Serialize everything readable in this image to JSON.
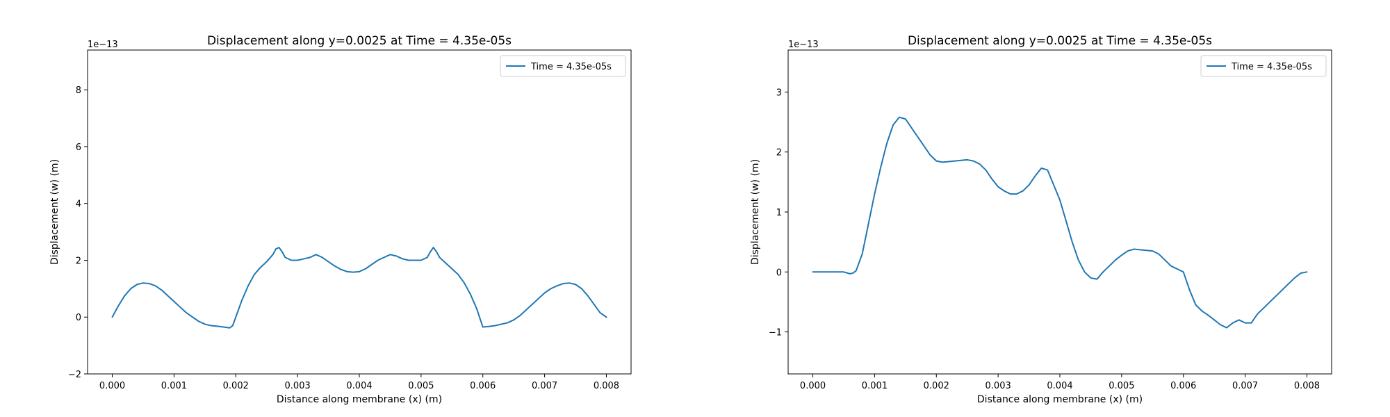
{
  "chart_data": [
    {
      "type": "line",
      "title": "Displacement along y=0.0025 at Time = 4.35e-05s",
      "xlabel": "Distance along membrane (x) (m)",
      "ylabel": "Displacement (w) (m)",
      "y_offset_label": "1e−13",
      "xlim": [
        -0.0004,
        0.0084
      ],
      "ylim": [
        -2,
        9.4
      ],
      "x_ticks": [
        "0.000",
        "0.001",
        "0.002",
        "0.003",
        "0.004",
        "0.005",
        "0.006",
        "0.007",
        "0.008"
      ],
      "y_ticks": [
        "−2",
        "0",
        "2",
        "4",
        "6",
        "8"
      ],
      "legend_position": "top-right",
      "grid": false,
      "series": [
        {
          "name": "Time = 4.35e-05s",
          "color": "#1f77b4",
          "x": [
            0.0,
            0.0001,
            0.0002,
            0.0003,
            0.0004,
            0.0005,
            0.0006,
            0.0007,
            0.0008,
            0.0009,
            0.001,
            0.0011,
            0.0012,
            0.0013,
            0.0014,
            0.0015,
            0.0016,
            0.0017,
            0.0018,
            0.0019,
            0.00195,
            0.002,
            0.0021,
            0.0022,
            0.0023,
            0.0024,
            0.0025,
            0.0026,
            0.00265,
            0.0027,
            0.00275,
            0.0028,
            0.0029,
            0.003,
            0.0031,
            0.0032,
            0.0033,
            0.0034,
            0.0035,
            0.0036,
            0.0037,
            0.0038,
            0.0039,
            0.004,
            0.0041,
            0.0042,
            0.0043,
            0.0044,
            0.0045,
            0.0046,
            0.0047,
            0.0048,
            0.0049,
            0.005,
            0.0051,
            0.00515,
            0.0052,
            0.00525,
            0.0053,
            0.0054,
            0.0055,
            0.0056,
            0.0057,
            0.0058,
            0.0059,
            0.006,
            0.0061,
            0.0062,
            0.0063,
            0.0064,
            0.0065,
            0.0066,
            0.0067,
            0.0068,
            0.0069,
            0.007,
            0.0071,
            0.0072,
            0.0073,
            0.0074,
            0.0075,
            0.0076,
            0.0077,
            0.0078,
            0.0079,
            0.008
          ],
          "y": [
            0.0,
            0.4,
            0.75,
            1.0,
            1.15,
            1.2,
            1.18,
            1.1,
            0.95,
            0.75,
            0.55,
            0.35,
            0.15,
            0.0,
            -0.15,
            -0.25,
            -0.3,
            -0.32,
            -0.35,
            -0.38,
            -0.3,
            0.0,
            0.6,
            1.1,
            1.5,
            1.75,
            1.95,
            2.2,
            2.4,
            2.45,
            2.3,
            2.1,
            2.0,
            2.0,
            2.05,
            2.1,
            2.2,
            2.1,
            1.95,
            1.8,
            1.68,
            1.6,
            1.58,
            1.6,
            1.7,
            1.85,
            2.0,
            2.1,
            2.2,
            2.15,
            2.05,
            2.0,
            2.0,
            2.0,
            2.1,
            2.3,
            2.45,
            2.3,
            2.1,
            1.9,
            1.7,
            1.5,
            1.2,
            0.8,
            0.3,
            -0.35,
            -0.33,
            -0.3,
            -0.25,
            -0.2,
            -0.1,
            0.05,
            0.25,
            0.45,
            0.65,
            0.85,
            1.0,
            1.1,
            1.18,
            1.2,
            1.15,
            1.0,
            0.75,
            0.45,
            0.15,
            0.0
          ]
        }
      ]
    },
    {
      "type": "line",
      "title": "Displacement along y=0.0025 at Time = 4.35e-05s",
      "xlabel": "Distance along membrane (x) (m)",
      "ylabel": "Displacement (w) (m)",
      "y_offset_label": "1e−13",
      "xlim": [
        -0.0004,
        0.0084
      ],
      "ylim": [
        -1.7,
        3.7
      ],
      "x_ticks": [
        "0.000",
        "0.001",
        "0.002",
        "0.003",
        "0.004",
        "0.005",
        "0.006",
        "0.007",
        "0.008"
      ],
      "y_ticks": [
        "−1",
        "0",
        "1",
        "2",
        "3"
      ],
      "legend_position": "top-right",
      "grid": false,
      "series": [
        {
          "name": "Time = 4.35e-05s",
          "color": "#1f77b4",
          "x": [
            0.0,
            0.0001,
            0.0002,
            0.0003,
            0.0004,
            0.0005,
            0.0006,
            0.00065,
            0.0007,
            0.0008,
            0.0009,
            0.001,
            0.0011,
            0.0012,
            0.0013,
            0.0014,
            0.0015,
            0.0016,
            0.0017,
            0.0018,
            0.0019,
            0.002,
            0.0021,
            0.0022,
            0.0023,
            0.0024,
            0.0025,
            0.0026,
            0.0027,
            0.0028,
            0.0029,
            0.003,
            0.0031,
            0.0032,
            0.0033,
            0.0034,
            0.0035,
            0.0036,
            0.0037,
            0.0038,
            0.0039,
            0.004,
            0.0041,
            0.0042,
            0.0043,
            0.0044,
            0.0045,
            0.0046,
            0.0047,
            0.0048,
            0.0049,
            0.005,
            0.0051,
            0.0052,
            0.0053,
            0.0054,
            0.0055,
            0.0056,
            0.0057,
            0.0058,
            0.0059,
            0.006,
            0.0061,
            0.0062,
            0.0063,
            0.0064,
            0.0065,
            0.0066,
            0.0067,
            0.0068,
            0.0069,
            0.007,
            0.0071,
            0.0072,
            0.0073,
            0.0074,
            0.0075,
            0.0076,
            0.0077,
            0.0078,
            0.0079,
            0.008
          ],
          "y": [
            0.0,
            0.0,
            0.0,
            0.0,
            0.0,
            0.0,
            -0.03,
            -0.02,
            0.02,
            0.3,
            0.8,
            1.3,
            1.75,
            2.15,
            2.45,
            2.58,
            2.55,
            2.4,
            2.25,
            2.1,
            1.95,
            1.85,
            1.83,
            1.84,
            1.85,
            1.86,
            1.87,
            1.85,
            1.8,
            1.7,
            1.55,
            1.42,
            1.35,
            1.3,
            1.3,
            1.35,
            1.45,
            1.6,
            1.73,
            1.7,
            1.45,
            1.2,
            0.85,
            0.5,
            0.2,
            0.0,
            -0.1,
            -0.12,
            0.0,
            0.1,
            0.2,
            0.28,
            0.35,
            0.38,
            0.37,
            0.36,
            0.35,
            0.3,
            0.2,
            0.1,
            0.05,
            0.0,
            -0.3,
            -0.55,
            -0.65,
            -0.72,
            -0.8,
            -0.88,
            -0.93,
            -0.85,
            -0.8,
            -0.85,
            -0.85,
            -0.7,
            -0.6,
            -0.5,
            -0.4,
            -0.3,
            -0.2,
            -0.1,
            -0.02,
            0.0
          ]
        }
      ]
    }
  ]
}
